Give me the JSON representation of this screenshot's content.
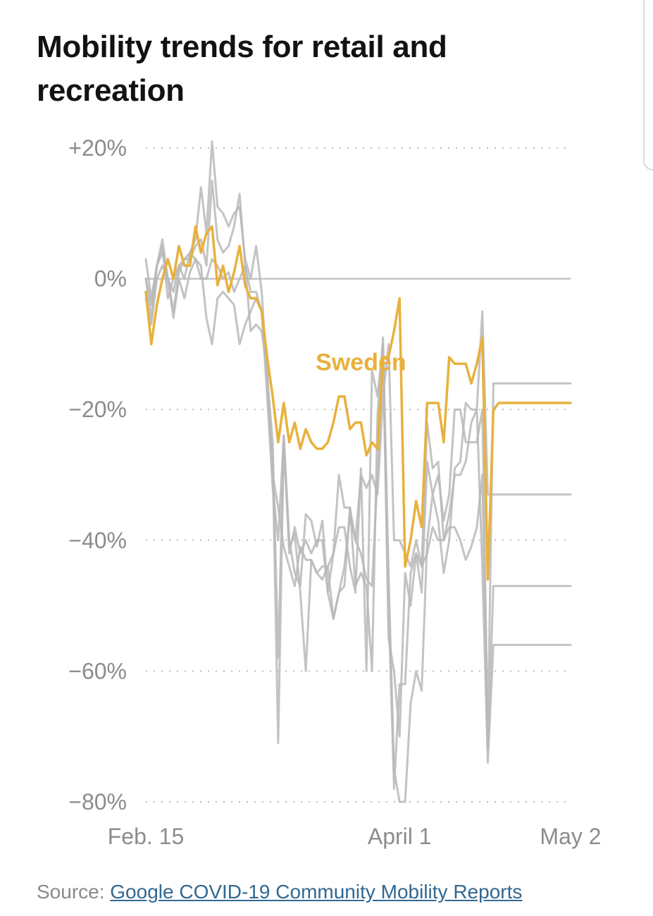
{
  "chart_data": {
    "type": "line",
    "title": "Mobility trends for retail and recreation",
    "xlabel": "",
    "ylabel": "",
    "x_tick_labels": [
      "Feb. 15",
      "April 1",
      "May 2"
    ],
    "x_range_days": [
      0,
      77
    ],
    "y_ticks": [
      20,
      0,
      -20,
      -40,
      -60,
      -80
    ],
    "y_tick_labels": [
      "+20%",
      "0%",
      "−20%",
      "−40%",
      "−60%",
      "−80%"
    ],
    "ylim": [
      -80,
      20
    ],
    "grid": "dotted horizontal",
    "highlight_color": "#e8b13c",
    "other_color": "#b9b9b9",
    "series": [
      {
        "name": "Sweden",
        "highlight": true,
        "x": [
          0,
          1,
          2,
          3,
          4,
          5,
          6,
          7,
          8,
          9,
          10,
          11,
          12,
          13,
          14,
          15,
          16,
          17,
          18,
          19,
          20,
          21,
          22,
          23,
          24,
          25,
          26,
          27,
          28,
          29,
          30,
          31,
          32,
          33,
          34,
          35,
          36,
          37,
          38,
          39,
          40,
          41,
          42,
          43,
          44,
          45,
          46,
          47,
          48,
          49,
          50,
          51,
          52,
          53,
          54,
          55,
          56,
          57,
          58,
          59,
          60,
          61,
          62,
          63,
          64,
          65,
          66,
          67,
          68,
          69,
          70,
          71,
          72,
          73,
          74,
          75,
          76,
          77
        ],
        "values": [
          -2,
          -10,
          -4,
          0,
          3,
          0,
          5,
          2,
          2,
          8,
          4,
          7,
          8,
          -1,
          2,
          -2,
          1,
          5,
          -1,
          -3,
          -3,
          -5,
          -12,
          -18,
          -25,
          -19,
          -25,
          -22,
          -26,
          -23,
          -25,
          -26,
          -26,
          -25,
          -22,
          -18,
          -18,
          -23,
          -22,
          -22,
          -27,
          -25,
          -26,
          -12,
          -12,
          -8,
          -3,
          -44,
          -40,
          -34,
          -38,
          -19,
          -19,
          -19,
          -25,
          -12,
          -13,
          -13,
          -13,
          -16,
          -13,
          -9,
          -46,
          -20,
          -19,
          -19,
          -19,
          -19,
          -19,
          -19,
          -19,
          -19,
          -19,
          -19,
          -19,
          -19,
          -19,
          -19
        ]
      },
      {
        "name": "",
        "highlight": false,
        "x": [
          0,
          1,
          2,
          3,
          4,
          5,
          6,
          7,
          8,
          9,
          10,
          11,
          12,
          13,
          14,
          15,
          16,
          17,
          18,
          19,
          20,
          21,
          22,
          23,
          24,
          25,
          26,
          27,
          28,
          29,
          30,
          31,
          32,
          33,
          34,
          35,
          36,
          37,
          38,
          39,
          40,
          41,
          42,
          43,
          44,
          45,
          46,
          47,
          48,
          49,
          50,
          51,
          52,
          53,
          54,
          55,
          56,
          57,
          58,
          59,
          60,
          61,
          62,
          63,
          64,
          65,
          66,
          67,
          68,
          69,
          70,
          71,
          72,
          73,
          74,
          75,
          76,
          77
        ],
        "values": [
          3,
          -3,
          2,
          6,
          0,
          -5,
          1,
          3,
          4,
          6,
          14,
          7,
          21,
          11,
          10,
          8,
          10,
          11,
          3,
          0,
          5,
          -2,
          -15,
          -28,
          -71,
          -25,
          -41,
          -39,
          -48,
          -60,
          -43,
          -45,
          -44,
          -44,
          -52,
          -48,
          -47,
          -35,
          -47,
          -45,
          -47,
          -60,
          -21,
          -9,
          -45,
          -75,
          -80,
          -80,
          -65,
          -60,
          -63,
          -40,
          -33,
          -37,
          -45,
          -40,
          -29,
          -28,
          -19,
          -20,
          -20,
          -44,
          -74,
          -56,
          -56,
          -56,
          -56,
          -56,
          -56,
          -56,
          -56,
          -56,
          -56,
          -56,
          -56,
          -56,
          -56,
          -56
        ]
      },
      {
        "name": "",
        "highlight": false,
        "x": [
          0,
          1,
          2,
          3,
          4,
          5,
          6,
          7,
          8,
          9,
          10,
          11,
          12,
          13,
          14,
          15,
          16,
          17,
          18,
          19,
          20,
          21,
          22,
          23,
          24,
          25,
          26,
          27,
          28,
          29,
          30,
          31,
          32,
          33,
          34,
          35,
          36,
          37,
          38,
          39,
          40,
          41,
          42,
          43,
          44,
          45,
          46,
          47,
          48,
          49,
          50,
          51,
          52,
          53,
          54,
          55,
          56,
          57,
          58,
          59,
          60,
          61,
          62,
          63,
          64,
          65,
          66,
          67,
          68,
          69,
          70,
          71,
          72,
          73,
          74,
          75,
          76,
          77
        ],
        "values": [
          0,
          -6,
          2,
          5,
          -3,
          0,
          2,
          0,
          4,
          3,
          0,
          0,
          3,
          2,
          0,
          1,
          -2,
          0,
          2,
          -8,
          -7,
          -8,
          -14,
          -30,
          -35,
          -41,
          -44,
          -47,
          -41,
          -43,
          -43,
          -45,
          -46,
          -44,
          -42,
          -30,
          -35,
          -35,
          -40,
          -30,
          -32,
          -30,
          -33,
          -18,
          -10,
          -40,
          -40,
          -42,
          -44,
          -40,
          -44,
          -42,
          -38,
          -40,
          -40,
          -38,
          -38,
          -40,
          -43,
          -41,
          -38,
          -30,
          -72,
          -47,
          -47,
          -47,
          -47,
          -47,
          -47,
          -47,
          -47,
          -47,
          -47,
          -47,
          -47,
          -47,
          -47,
          -47
        ]
      },
      {
        "name": "",
        "highlight": false,
        "x": [
          0,
          1,
          2,
          3,
          4,
          5,
          6,
          7,
          8,
          9,
          10,
          11,
          12,
          13,
          14,
          15,
          16,
          17,
          18,
          19,
          20,
          21,
          22,
          23,
          24,
          25,
          26,
          27,
          28,
          29,
          30,
          31,
          32,
          33,
          34,
          35,
          36,
          37,
          38,
          39,
          40,
          41,
          42,
          43,
          44,
          45,
          46,
          47,
          48,
          49,
          50,
          51,
          52,
          53,
          54,
          55,
          56,
          57,
          58,
          59,
          60,
          61,
          62,
          63,
          64,
          65,
          66,
          67,
          68,
          69,
          70,
          71,
          72,
          73,
          74,
          75,
          76,
          77
        ],
        "values": [
          -3,
          -7,
          0,
          2,
          0,
          -6,
          0,
          -3,
          1,
          3,
          2,
          -6,
          -10,
          -3,
          -2,
          -3,
          -4,
          -10,
          -7,
          -5,
          -3,
          -5,
          -18,
          -32,
          -40,
          -24,
          -40,
          -45,
          -47,
          -36,
          -37,
          -41,
          -37,
          -48,
          -42,
          -38,
          -38,
          -44,
          -48,
          -29,
          -60,
          -14,
          -18,
          -10,
          -55,
          -60,
          -70,
          -45,
          -50,
          -42,
          -48,
          -28,
          -33,
          -30,
          -37,
          -33,
          -20,
          -20,
          -25,
          -25,
          -25,
          -20,
          -70,
          -16,
          -16,
          -16,
          -16,
          -16,
          -16,
          -16,
          -16,
          -16,
          -16,
          -16,
          -16,
          -16,
          -16,
          -16
        ]
      },
      {
        "name": "",
        "highlight": false,
        "x": [
          0,
          1,
          2,
          3,
          4,
          5,
          6,
          7,
          8,
          9,
          10,
          11,
          12,
          13,
          14,
          15,
          16,
          17,
          18,
          19,
          20,
          21,
          22,
          23,
          24,
          25,
          26,
          27,
          28,
          29,
          30,
          31,
          32,
          33,
          34,
          35,
          36,
          37,
          38,
          39,
          40,
          41,
          42,
          43,
          44,
          45,
          46,
          47,
          48,
          49,
          50,
          51,
          52,
          53,
          54,
          55,
          56,
          57,
          58,
          59,
          60,
          61,
          62,
          63,
          64,
          65,
          66,
          67,
          68,
          69,
          70,
          71,
          72,
          73,
          74,
          75,
          76,
          77
        ],
        "values": [
          0,
          -4,
          2,
          4,
          0,
          -2,
          2,
          3,
          3,
          5,
          6,
          2,
          15,
          6,
          4,
          5,
          8,
          13,
          2,
          -2,
          -2,
          -5,
          -15,
          -25,
          -58,
          -24,
          -42,
          -38,
          -42,
          -40,
          -42,
          -40,
          -40,
          -48,
          -52,
          -48,
          -44,
          -36,
          -40,
          -42,
          -46,
          -47,
          -30,
          -12,
          -50,
          -78,
          -62,
          -62,
          -45,
          -42,
          -44,
          -22,
          -29,
          -28,
          -40,
          -36,
          -30,
          -30,
          -28,
          -22,
          -20,
          -5,
          -33,
          -33,
          -33,
          -33,
          -33,
          -33,
          -33,
          -33,
          -33,
          -33,
          -33,
          -33,
          -33,
          -33,
          -33,
          -33
        ]
      }
    ],
    "annotations": [
      {
        "text": "Sweden",
        "series": "Sweden",
        "x": 39,
        "y": -14
      }
    ],
    "source_prefix": "Source:",
    "source_link": "Google COVID-19 Community Mobility Reports"
  }
}
